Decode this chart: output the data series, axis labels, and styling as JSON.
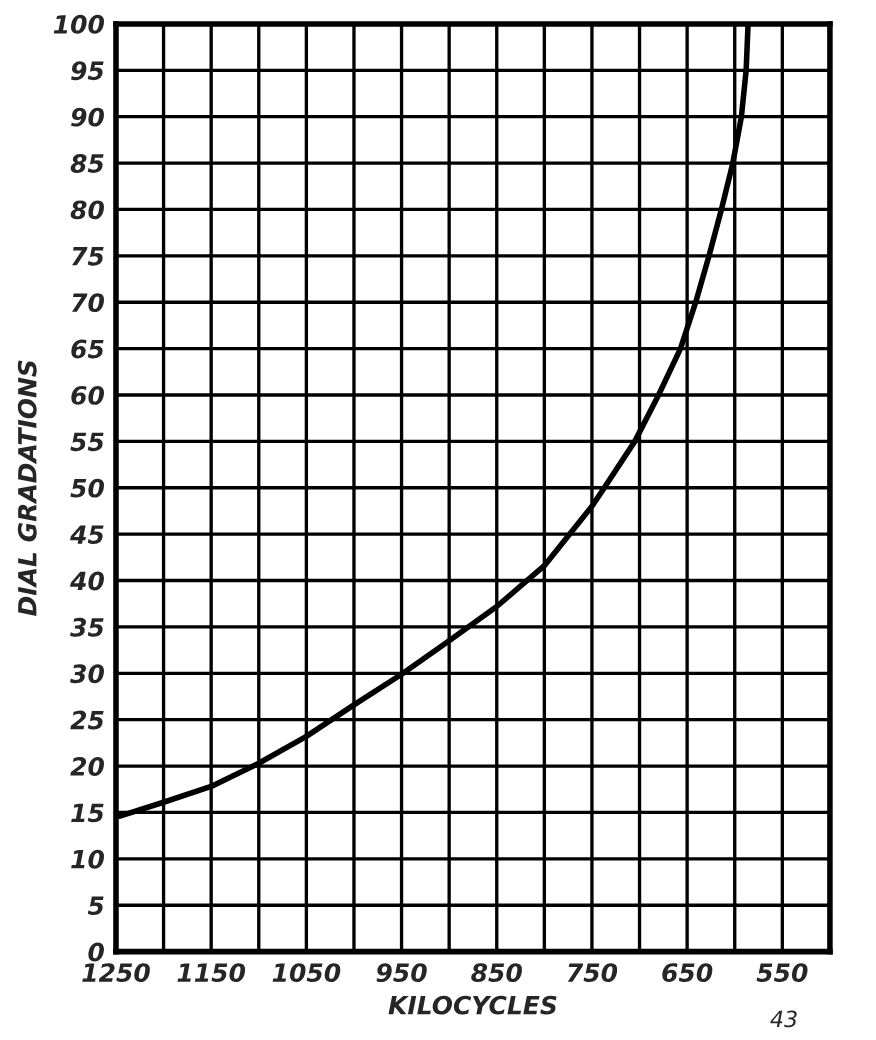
{
  "chart_data": {
    "type": "line",
    "xlabel": "KILOCYCLES",
    "ylabel": "DIAL GRADATIONS",
    "annotations": [
      "43"
    ],
    "x": [
      1246,
      1200,
      1150,
      1100,
      1050,
      1000,
      950,
      900,
      850,
      800,
      750,
      737,
      705,
      680,
      657,
      641,
      627,
      614,
      602,
      593,
      588,
      586
    ],
    "series": [
      {
        "color": "#000000",
        "values": [
          14.6,
          16.1,
          17.8,
          20.3,
          23.2,
          26.6,
          29.9,
          33.5,
          37.2,
          41.6,
          48,
          50,
          55,
          60,
          65,
          70,
          75,
          80,
          85,
          90,
          95,
          100
        ]
      }
    ],
    "xlim": [
      1250,
      500
    ],
    "ylim": [
      0,
      100
    ],
    "xticks": [
      1250,
      {
        "value": 1200,
        "label": null
      },
      1150,
      {
        "value": 1100,
        "label": null
      },
      1050,
      {
        "value": 1000,
        "label": null
      },
      950,
      {
        "value": 900,
        "label": null
      },
      850,
      {
        "value": 800,
        "label": null
      },
      750,
      {
        "value": 700,
        "label": null
      },
      650,
      {
        "value": 600,
        "label": null
      },
      550,
      {
        "value": 500,
        "label": null
      }
    ],
    "yticks": [
      0,
      5,
      10,
      15,
      20,
      25,
      30,
      35,
      40,
      45,
      50,
      55,
      60,
      65,
      70,
      75,
      80,
      85,
      90,
      95,
      100
    ],
    "grid": true,
    "marker": "none",
    "line_style": "solid"
  }
}
